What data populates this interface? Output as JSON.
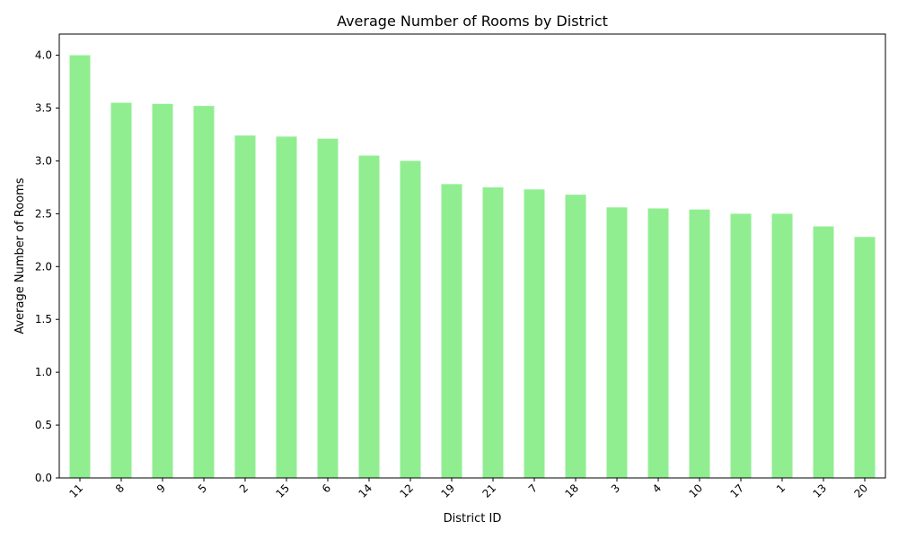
{
  "chart_data": {
    "type": "bar",
    "title": "Average Number of Rooms by District",
    "xlabel": "District ID",
    "ylabel": "Average Number of Rooms",
    "categories": [
      "11",
      "8",
      "9",
      "5",
      "2",
      "15",
      "6",
      "14",
      "12",
      "19",
      "21",
      "7",
      "18",
      "3",
      "4",
      "10",
      "17",
      "1",
      "13",
      "20"
    ],
    "values": [
      4.0,
      3.55,
      3.54,
      3.52,
      3.24,
      3.23,
      3.21,
      3.05,
      3.0,
      2.78,
      2.75,
      2.73,
      2.68,
      2.56,
      2.55,
      2.54,
      2.5,
      2.5,
      2.38,
      2.28
    ],
    "ylim": [
      0,
      4.2
    ],
    "yticks": [
      "0.0",
      "0.5",
      "1.0",
      "1.5",
      "2.0",
      "2.5",
      "3.0",
      "3.5",
      "4.0"
    ],
    "bar_color": "#90ee90",
    "grid": false,
    "legend": "none"
  }
}
